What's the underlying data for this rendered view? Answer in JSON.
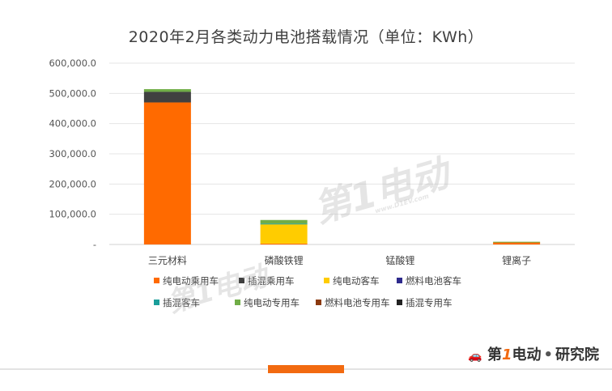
{
  "chart_data": {
    "type": "bar",
    "stacked": true,
    "title": "2020年2月各类动力电池搭载情况（单位：KWh）",
    "categories": [
      "三元材料",
      "磷酸铁锂",
      "锰酸锂",
      "锂离子"
    ],
    "ylim": [
      0,
      600000
    ],
    "yticks": [
      "-",
      "100,000.0",
      "200,000.0",
      "300,000.0",
      "400,000.0",
      "500,000.0",
      "600,000.0"
    ],
    "grid": true,
    "legend_position": "bottom",
    "series": [
      {
        "name": "纯电动乘用车",
        "color": "#ff6a00",
        "values": [
          470000,
          3000,
          0,
          7000
        ]
      },
      {
        "name": "插混乘用车",
        "color": "#404040",
        "values": [
          35000,
          0,
          0,
          0
        ]
      },
      {
        "name": "纯电动客车",
        "color": "#ffcc00",
        "values": [
          0,
          64000,
          0,
          0
        ]
      },
      {
        "name": "燃料电池客车",
        "color": "#2e2a8c",
        "values": [
          0,
          0,
          0,
          0
        ]
      },
      {
        "name": "插混客车",
        "color": "#1a9e9a",
        "values": [
          0,
          2000,
          0,
          0
        ]
      },
      {
        "name": "纯电动专用车",
        "color": "#70ad47",
        "values": [
          9000,
          12000,
          0,
          2000
        ]
      },
      {
        "name": "燃料电池专用车",
        "color": "#8b3a0f",
        "values": [
          0,
          0,
          0,
          0
        ]
      },
      {
        "name": "插混专用车",
        "color": "#222222",
        "values": [
          0,
          0,
          0,
          0
        ]
      }
    ]
  },
  "watermark": {
    "text": "第1电动",
    "sub": "www.D1EV.com"
  },
  "brand": {
    "part1": "第",
    "part2": "1",
    "part3": "电动",
    "sep": "•",
    "part4": "研究院"
  }
}
